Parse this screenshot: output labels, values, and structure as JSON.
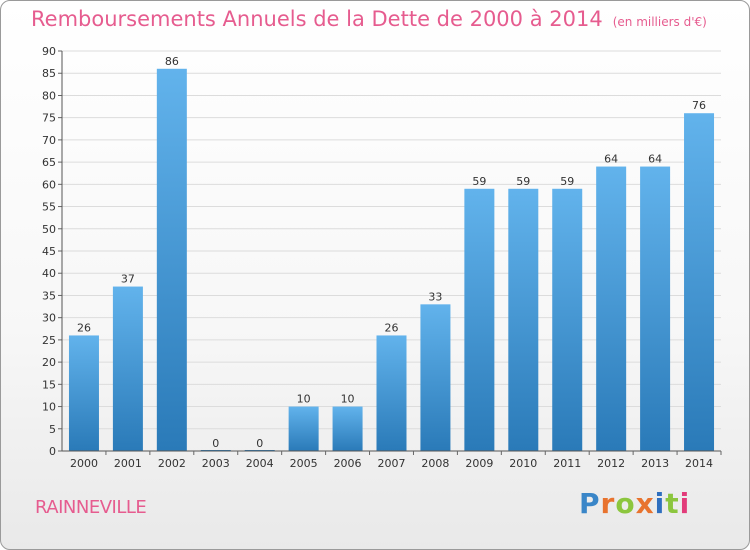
{
  "header": {
    "title": "Remboursements Annuels de la Dette de 2000 à 2014",
    "unit": "(en milliers d'€)"
  },
  "footer": {
    "commune": "RAINNEVILLE",
    "logo_letters": [
      "P",
      "r",
      "o",
      "x",
      "i",
      "t",
      "i"
    ],
    "logo_colors": [
      "#3a86c8",
      "#e8732e",
      "#8cc63e",
      "#e8732e",
      "#2f6fbf",
      "#8cc63e",
      "#e23c7a"
    ]
  },
  "colors": {
    "bar_light": "#62b3ec",
    "bar_dark": "#2a7ab8",
    "title": "#e65c8f",
    "grid": "#dcdcdc"
  },
  "chart_data": {
    "type": "bar",
    "title": "Remboursements Annuels de la Dette de 2000 à 2014",
    "subtitle": "(en milliers d'€)",
    "xlabel": "",
    "ylabel": "",
    "categories": [
      "2000",
      "2001",
      "2002",
      "2003",
      "2004",
      "2005",
      "2006",
      "2007",
      "2008",
      "2009",
      "2010",
      "2011",
      "2012",
      "2013",
      "2014"
    ],
    "values": [
      26,
      37,
      86,
      0,
      0,
      10,
      10,
      26,
      33,
      59,
      59,
      59,
      64,
      64,
      76
    ],
    "ylim": [
      0,
      90
    ],
    "yticks": [
      0,
      5,
      10,
      15,
      20,
      25,
      30,
      35,
      40,
      45,
      50,
      55,
      60,
      65,
      70,
      75,
      80,
      85,
      90
    ],
    "grid": true,
    "data_labels": true
  }
}
